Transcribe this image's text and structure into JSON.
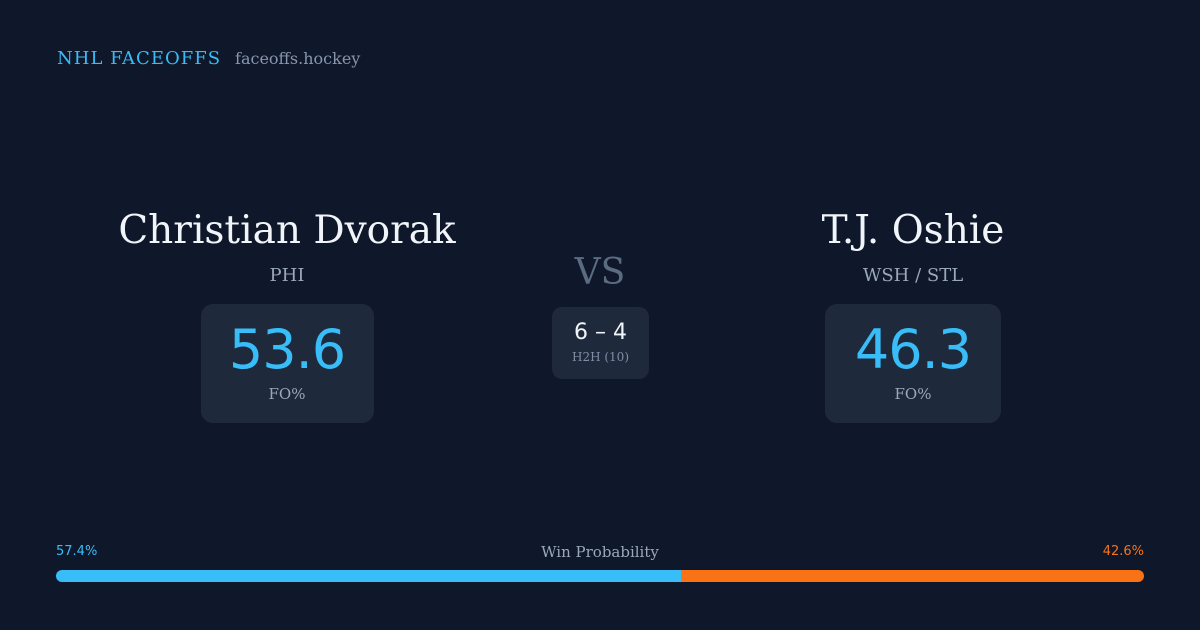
{
  "brand": {
    "name": "NHL FACEOFFS",
    "url": "faceoffs.hockey"
  },
  "player_left": {
    "name": "Christian Dvorak",
    "team": "PHI",
    "fo_pct": "53.6",
    "fo_label": "FO%"
  },
  "player_right": {
    "name": "T.J. Oshie",
    "team": "WSH / STL",
    "fo_pct": "46.3",
    "fo_label": "FO%"
  },
  "vs_label": "VS",
  "h2h": {
    "score": "6 – 4",
    "label": "H2H (10)"
  },
  "win_probability": {
    "title": "Win Probability",
    "left_label": "57.4%",
    "right_label": "42.6%",
    "left_value": 57.4,
    "right_value": 42.6
  },
  "colors": {
    "background": "#0f172a",
    "card": "#1e293b",
    "accent_blue": "#38bdf8",
    "accent_orange": "#f97316"
  }
}
